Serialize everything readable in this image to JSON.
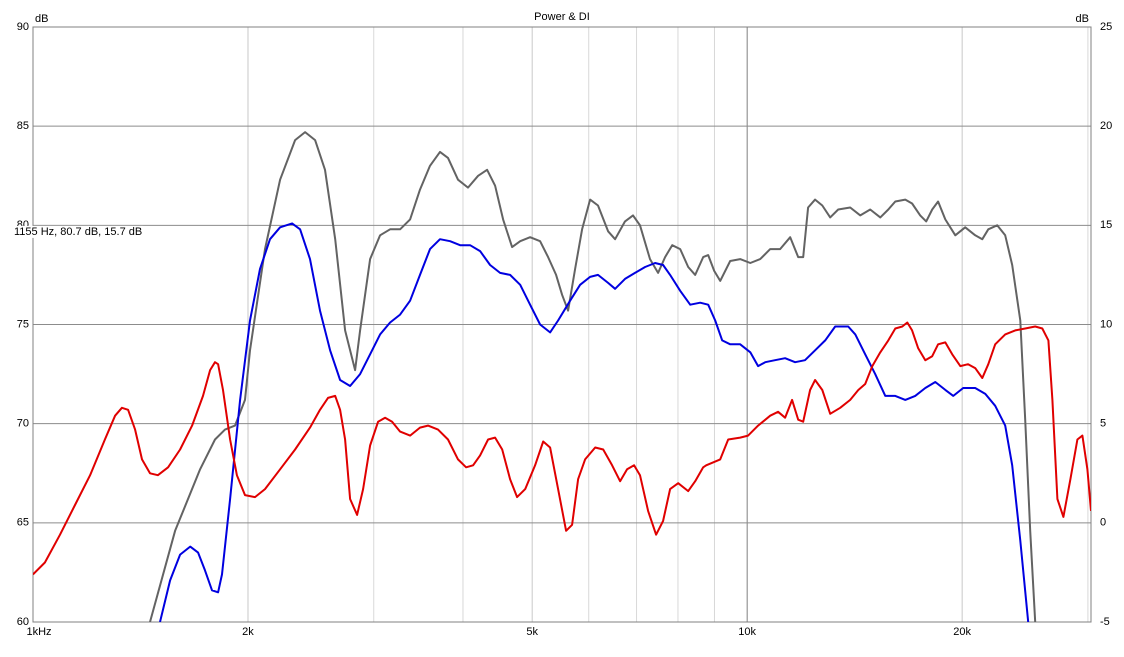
{
  "chart_data": {
    "type": "line",
    "title": "Power & DI",
    "y_label": "dB",
    "y2_label": "dB",
    "annotation": "1155 Hz, 80.7 dB, 15.7 dB",
    "log_x": true,
    "grid": true,
    "xlim": [
      1000,
      30300
    ],
    "xticks": [
      {
        "value": 1000,
        "label": "1kHz"
      },
      {
        "value": 2000,
        "label": "2k"
      },
      {
        "value": 5000,
        "label": "5k"
      },
      {
        "value": 10000,
        "label": "10k"
      },
      {
        "value": 20000,
        "label": "20k"
      }
    ],
    "xminor": [
      3000,
      4000,
      6000,
      7000,
      8000,
      9000,
      30000
    ],
    "ylim": [
      60,
      90
    ],
    "yticks": [
      60,
      65,
      70,
      75,
      80,
      85,
      90
    ],
    "y2lim": [
      -5,
      25
    ],
    "y2ticks": [
      -5,
      0,
      5,
      10,
      15,
      20,
      25
    ],
    "series": [
      {
        "color": "#636363",
        "x": [
          1458,
          1581,
          1714,
          1798,
          1857,
          1918,
          1981,
          2013,
          2113,
          2218,
          2328,
          2404,
          2483,
          2564,
          2649,
          2735,
          2825,
          2871,
          2965,
          3062,
          3162,
          3266,
          3373,
          3483,
          3597,
          3715,
          3812,
          3937,
          4066,
          4200,
          4324,
          4437,
          4553,
          4687,
          4810,
          4967,
          5130,
          5264,
          5401,
          5507,
          5614,
          5742,
          5873,
          6026,
          6183,
          6386,
          6532,
          6745,
          6921,
          7079,
          7311,
          7505,
          7676,
          7852,
          8057,
          8268,
          8456,
          8679,
          8820,
          8991,
          9167,
          9467,
          9777,
          10100,
          10430,
          10770,
          11120,
          11490,
          11790,
          11980,
          12170,
          12450,
          12740,
          13070,
          13410,
          13940,
          14400,
          14870,
          15360,
          15760,
          16120,
          16650,
          17020,
          17470,
          17810,
          18160,
          18510,
          18940,
          19560,
          20200,
          20860,
          21340,
          21760,
          22390,
          22980,
          23500,
          24120,
          24510,
          24910,
          25310
        ],
        "values": [
          60,
          64.6,
          67.7,
          69.2,
          69.7,
          69.9,
          71.2,
          73.7,
          78.8,
          82.3,
          84.3,
          84.7,
          84.3,
          82.8,
          79.3,
          74.7,
          72.7,
          74.7,
          78.3,
          79.5,
          79.8,
          79.8,
          80.3,
          81.8,
          83,
          83.7,
          83.4,
          82.3,
          81.9,
          82.5,
          82.8,
          82,
          80.3,
          78.9,
          79.2,
          79.4,
          79.2,
          78.4,
          77.5,
          76.5,
          75.7,
          77.8,
          79.8,
          81.3,
          81,
          79.7,
          79.3,
          80.2,
          80.5,
          80,
          78.3,
          77.6,
          78.4,
          79,
          78.8,
          77.9,
          77.5,
          78.4,
          78.5,
          77.7,
          77.2,
          78.2,
          78.3,
          78.1,
          78.3,
          78.8,
          78.8,
          79.4,
          78.4,
          78.4,
          80.9,
          81.3,
          81,
          80.4,
          80.8,
          80.9,
          80.5,
          80.8,
          80.4,
          80.8,
          81.2,
          81.3,
          81.1,
          80.5,
          80.2,
          80.8,
          81.2,
          80.3,
          79.5,
          79.9,
          79.5,
          79.3,
          79.8,
          80,
          79.5,
          78,
          75.2,
          70.2,
          64.6,
          60
        ]
      },
      {
        "color": "#0000e0",
        "x": [
          1506,
          1556,
          1607,
          1660,
          1703,
          1741,
          1781,
          1816,
          1839,
          1888,
          1950,
          2013,
          2079,
          2147,
          2218,
          2306,
          2366,
          2443,
          2523,
          2606,
          2692,
          2780,
          2871,
          2965,
          3062,
          3162,
          3266,
          3373,
          3483,
          3597,
          3715,
          3837,
          3963,
          4093,
          4227,
          4366,
          4509,
          4657,
          4810,
          4967,
          5130,
          5298,
          5436,
          5651,
          5836,
          6026,
          6183,
          6386,
          6532,
          6745,
          6966,
          7195,
          7431,
          7626,
          7801,
          8057,
          8321,
          8594,
          8820,
          9020,
          9226,
          9467,
          9777,
          10100,
          10360,
          10600,
          10940,
          11300,
          11670,
          12050,
          12450,
          12860,
          13280,
          13850,
          14170,
          14630,
          15110,
          15610,
          16120,
          16650,
          17190,
          17760,
          18340,
          18940,
          19440,
          20070,
          20860,
          21550,
          22250,
          22980,
          23500,
          24120,
          24750
        ],
        "values": [
          60,
          62.1,
          63.4,
          63.8,
          63.5,
          62.6,
          61.6,
          61.5,
          62.4,
          66.2,
          71.2,
          75.2,
          77.8,
          79.3,
          79.9,
          80.1,
          79.8,
          78.3,
          75.7,
          73.7,
          72.2,
          71.9,
          72.5,
          73.5,
          74.5,
          75.1,
          75.5,
          76.2,
          77.5,
          78.8,
          79.3,
          79.2,
          79,
          79,
          78.7,
          78,
          77.6,
          77.5,
          77,
          76,
          75,
          74.6,
          75.2,
          76.2,
          77,
          77.4,
          77.5,
          77.1,
          76.8,
          77.3,
          77.6,
          77.9,
          78.1,
          78,
          77.5,
          76.7,
          76,
          76.1,
          76,
          75.2,
          74.2,
          74,
          74,
          73.6,
          72.9,
          73.1,
          73.2,
          73.3,
          73.1,
          73.2,
          73.7,
          74.2,
          74.9,
          74.9,
          74.5,
          73.5,
          72.5,
          71.4,
          71.4,
          71.2,
          71.4,
          71.8,
          72.1,
          71.7,
          71.4,
          71.8,
          71.8,
          71.5,
          70.9,
          69.9,
          67.9,
          64.1,
          60
        ]
      },
      {
        "color": "#e00000",
        "axis": "y2",
        "x": [
          1000,
          1039,
          1091,
          1145,
          1202,
          1261,
          1303,
          1332,
          1359,
          1390,
          1421,
          1458,
          1496,
          1546,
          1607,
          1670,
          1730,
          1770,
          1798,
          1816,
          1845,
          1888,
          1930,
          1981,
          2046,
          2113,
          2218,
          2328,
          2443,
          2523,
          2589,
          2649,
          2692,
          2735,
          2780,
          2843,
          2899,
          2965,
          3042,
          3112,
          3183,
          3266,
          3373,
          3483,
          3574,
          3691,
          3812,
          3937,
          4040,
          4133,
          4227,
          4338,
          4437,
          4539,
          4657,
          4763,
          4888,
          5048,
          5180,
          5298,
          5436,
          5578,
          5687,
          5798,
          5931,
          6126,
          6286,
          6470,
          6639,
          6791,
          6945,
          7079,
          7265,
          7455,
          7626,
          7801,
          8005,
          8268,
          8456,
          8679,
          8763,
          9167,
          9406,
          9777,
          10030,
          10360,
          10770,
          11050,
          11300,
          11560,
          11790,
          11980,
          12250,
          12450,
          12740,
          13070,
          13500,
          13940,
          14310,
          14630,
          14970,
          15360,
          15760,
          16120,
          16490,
          16760,
          17020,
          17360,
          17760,
          18160,
          18510,
          18940,
          19370,
          19880,
          20390,
          20860,
          21340,
          21760,
          22250,
          22980,
          23730,
          24510,
          25310,
          25900,
          26410,
          26750,
          27190,
          27720,
          28350,
          29000,
          29470,
          29950,
          30300
        ],
        "values": [
          -2.6,
          -2,
          -0.6,
          0.9,
          2.4,
          4.2,
          5.4,
          5.8,
          5.7,
          4.7,
          3.2,
          2.5,
          2.4,
          2.8,
          3.7,
          4.9,
          6.4,
          7.7,
          8.1,
          8,
          6.7,
          4.2,
          2.4,
          1.4,
          1.3,
          1.7,
          2.7,
          3.7,
          4.8,
          5.7,
          6.3,
          6.4,
          5.7,
          4.2,
          1.2,
          0.4,
          1.7,
          3.9,
          5.1,
          5.3,
          5.1,
          4.6,
          4.4,
          4.8,
          4.9,
          4.7,
          4.2,
          3.2,
          2.8,
          2.9,
          3.4,
          4.2,
          4.3,
          3.7,
          2.2,
          1.3,
          1.7,
          2.9,
          4.1,
          3.8,
          1.7,
          -0.4,
          -0.1,
          2.2,
          3.2,
          3.8,
          3.7,
          2.9,
          2.1,
          2.7,
          2.9,
          2.4,
          0.6,
          -0.6,
          0.1,
          1.7,
          2,
          1.6,
          2.1,
          2.8,
          2.9,
          3.2,
          4.2,
          4.3,
          4.4,
          4.9,
          5.4,
          5.6,
          5.3,
          6.2,
          5.2,
          5.1,
          6.7,
          7.2,
          6.7,
          5.5,
          5.8,
          6.2,
          6.7,
          7,
          7.9,
          8.6,
          9.2,
          9.8,
          9.9,
          10.1,
          9.7,
          8.8,
          8.2,
          8.4,
          9,
          9.1,
          8.5,
          7.9,
          8,
          7.8,
          7.3,
          8,
          9,
          9.5,
          9.7,
          9.8,
          9.9,
          9.8,
          9.2,
          6.2,
          1.2,
          0.3,
          2.2,
          4.2,
          4.4,
          2.7,
          0.6
        ]
      }
    ]
  }
}
